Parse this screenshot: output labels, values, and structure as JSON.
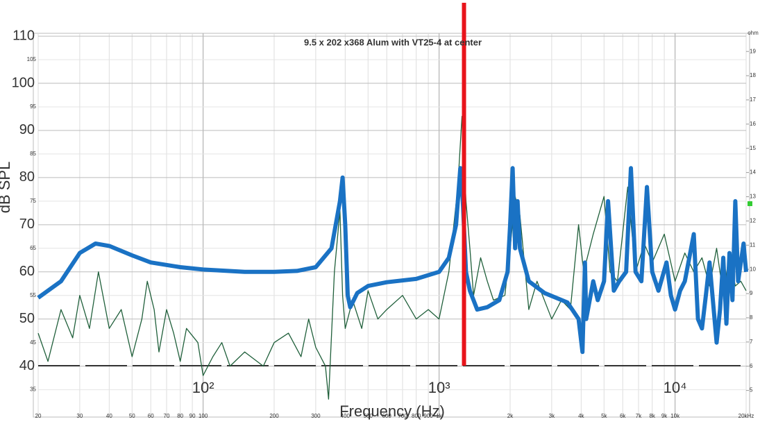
{
  "chart_data": {
    "type": "line",
    "title": "9.5 x 202 x368 Alum with VT25-4 at center",
    "x_label": "Frequency (Hz)",
    "y_label": "dB SPL",
    "y2_label": "ohm",
    "log_x": true,
    "grid": true,
    "xlim": [
      20,
      20000
    ],
    "ylim": [
      29.2,
      110.6
    ],
    "y2lim": [
      3.9,
      19.75
    ],
    "xticks": [
      20,
      30,
      40,
      50,
      60,
      70,
      80,
      90,
      100,
      200,
      300,
      400,
      500,
      600,
      700,
      800,
      900,
      {
        "value": 1000,
        "label": "1k"
      },
      {
        "value": 2000,
        "label": "2k"
      },
      {
        "value": 3000,
        "label": "3k"
      },
      {
        "value": 4000,
        "label": "4k"
      },
      {
        "value": 5000,
        "label": "5k"
      },
      {
        "value": 6000,
        "label": "6k"
      },
      {
        "value": 7000,
        "label": "7k"
      },
      {
        "value": 8000,
        "label": "8k"
      },
      {
        "value": 9000,
        "label": "9k"
      },
      {
        "value": 10000,
        "label": "10k"
      },
      {
        "value": 20000,
        "label": "20kHz"
      }
    ],
    "xticks_major": [
      {
        "value": 100,
        "label": "10²"
      },
      {
        "value": 1000,
        "label": "10³"
      },
      {
        "value": 10000,
        "label": "10⁴"
      }
    ],
    "yticks": [
      35,
      40,
      45,
      50,
      55,
      60,
      65,
      70,
      75,
      80,
      85,
      90,
      95,
      100,
      105,
      110
    ],
    "y2ticks": [
      5,
      6,
      7,
      8,
      9,
      10,
      11,
      12,
      13,
      14,
      15,
      16,
      17,
      18,
      19
    ],
    "cursor": {
      "x": 1275,
      "color": "#e8141b"
    },
    "series": [
      {
        "color": "#1f5f3a",
        "width": 1.3,
        "x": [
          20,
          22,
          25,
          28,
          30,
          33,
          36,
          40,
          45,
          50,
          55,
          58,
          62,
          65,
          70,
          75,
          80,
          85,
          95,
          100,
          110,
          120,
          130,
          150,
          180,
          200,
          230,
          260,
          280,
          300,
          330,
          340,
          360,
          380,
          390,
          400,
          430,
          470,
          500,
          550,
          600,
          700,
          800,
          900,
          1000,
          1100,
          1200,
          1250,
          1300,
          1350,
          1400,
          1500,
          1600,
          1700,
          1900,
          2000,
          2100,
          2200,
          2400,
          2600,
          3000,
          3300,
          3600,
          3900,
          4100,
          4500,
          5000,
          5300,
          5700,
          6300,
          6800,
          7400,
          8000,
          9000,
          10000,
          11000,
          12000,
          13000,
          14000,
          15000,
          16000,
          17000,
          18000,
          19000,
          20000
        ],
        "values": [
          47,
          41,
          52,
          46,
          55,
          48,
          60,
          48,
          52,
          42,
          50,
          58,
          52,
          43,
          52,
          47,
          41,
          48,
          45,
          38,
          42,
          45,
          40,
          43,
          40,
          45,
          47,
          42,
          50,
          44,
          40,
          33,
          60,
          73,
          55,
          48,
          54,
          48,
          56,
          50,
          52,
          55,
          50,
          52,
          50,
          60,
          78,
          93,
          75,
          65,
          55,
          63,
          58,
          54,
          55,
          65,
          76,
          72,
          52,
          58,
          50,
          54,
          52,
          70,
          60,
          68,
          76,
          60,
          58,
          78,
          60,
          66,
          62,
          68,
          58,
          64,
          60,
          63,
          57,
          65,
          55,
          64,
          57,
          58,
          56
        ]
      },
      {
        "color": "#1a72c4",
        "width": 6,
        "x": [
          20,
          25,
          30,
          35,
          40,
          50,
          60,
          80,
          100,
          150,
          200,
          250,
          300,
          350,
          380,
          390,
          400,
          410,
          420,
          450,
          500,
          600,
          800,
          1000,
          1100,
          1180,
          1230,
          1260,
          1300,
          1350,
          1450,
          1600,
          1800,
          1950,
          2000,
          2050,
          2100,
          2150,
          2200,
          2400,
          2800,
          3500,
          3900,
          4050,
          4150,
          4200,
          4500,
          4700,
          5000,
          5200,
          5500,
          5800,
          6200,
          6500,
          6800,
          7200,
          7600,
          8000,
          8500,
          9200,
          9600,
          10000,
          10500,
          11000,
          12000,
          12500,
          13000,
          13500,
          14000,
          15000,
          15500,
          16000,
          16500,
          17000,
          17500,
          18000,
          18500,
          19500,
          20000
        ],
        "values": [
          54.5,
          58,
          64,
          66,
          65.5,
          63.5,
          62,
          61,
          60.5,
          60,
          60,
          60.2,
          61,
          65,
          75,
          80,
          70,
          55,
          52.5,
          55.5,
          57,
          57.8,
          58.5,
          60,
          63,
          70,
          82,
          75,
          60,
          56,
          52,
          52.5,
          54,
          60,
          70,
          82,
          65,
          75,
          65,
          58,
          55.5,
          53.5,
          50,
          43,
          62,
          50,
          58,
          54,
          58,
          75,
          56,
          58,
          60,
          82,
          60,
          58,
          78,
          60,
          56,
          62,
          55,
          52,
          56,
          58,
          68,
          50,
          48,
          55,
          62,
          45,
          52,
          63,
          49,
          64,
          54,
          75,
          58,
          66,
          60
        ]
      }
    ]
  }
}
